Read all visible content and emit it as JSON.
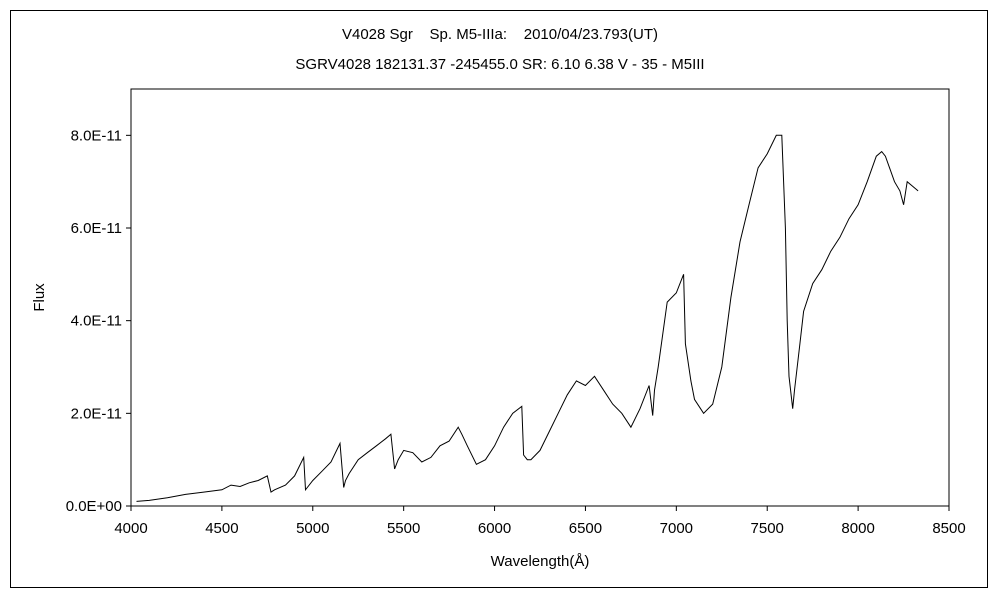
{
  "chart_data": {
    "type": "line",
    "title": "V4028 Sgr    Sp. M5-IIIa:    2010/04/23.793(UT)",
    "subtitle": "SGRV4028 182131.37 -245455.0 SR: 6.10 6.38 V - 35 - M5III",
    "xlabel": "Wavelength(Å)",
    "ylabel": "Flux",
    "xlim": [
      4000,
      8500
    ],
    "ylim": [
      0,
      9e-11
    ],
    "grid": false,
    "legend": "none",
    "x_ticks": [
      4000,
      4500,
      5000,
      5500,
      6000,
      6500,
      7000,
      7500,
      8000,
      8500
    ],
    "x_tick_labels": [
      "4000",
      "4500",
      "5000",
      "5500",
      "6000",
      "6500",
      "7000",
      "7500",
      "8000",
      "8500"
    ],
    "y_ticks": [
      0,
      2e-11,
      4e-11,
      6e-11,
      8e-11
    ],
    "y_tick_labels": [
      "0.0E+00",
      "2.0E-11",
      "4.0E-11",
      "6.0E-11",
      "8.0E-11"
    ],
    "line_color": "#000000",
    "series": [
      {
        "x": [
          4030,
          4100,
          4200,
          4300,
          4400,
          4500,
          4550,
          4600,
          4650,
          4700,
          4750,
          4770,
          4790,
          4850,
          4900,
          4950,
          4960,
          4970,
          5000,
          5050,
          5100,
          5150,
          5170,
          5180,
          5200,
          5250,
          5300,
          5350,
          5400,
          5430,
          5450,
          5470,
          5500,
          5550,
          5600,
          5650,
          5700,
          5750,
          5800,
          5820,
          5850,
          5900,
          5950,
          6000,
          6050,
          6100,
          6150,
          6160,
          6180,
          6200,
          6250,
          6300,
          6350,
          6400,
          6450,
          6500,
          6550,
          6600,
          6650,
          6700,
          6750,
          6800,
          6850,
          6870,
          6880,
          6900,
          6950,
          7000,
          7040,
          7050,
          7080,
          7100,
          7150,
          7200,
          7250,
          7300,
          7350,
          7400,
          7450,
          7500,
          7550,
          7580,
          7600,
          7610,
          7620,
          7640,
          7650,
          7680,
          7700,
          7750,
          7800,
          7850,
          7900,
          7950,
          8000,
          8050,
          8100,
          8130,
          8150,
          8200,
          8230,
          8250,
          8270,
          8300,
          8330
        ],
        "y": [
          1e-12,
          1.2e-12,
          1.8e-12,
          2.5e-12,
          3e-12,
          3.5e-12,
          4.5e-12,
          4.2e-12,
          5e-12,
          5.5e-12,
          6.5e-12,
          3e-12,
          3.5e-12,
          4.5e-12,
          6.5e-12,
          1.05e-11,
          3.5e-12,
          4e-12,
          5.5e-12,
          7.5e-12,
          9.5e-12,
          1.35e-11,
          4e-12,
          5.5e-12,
          7e-12,
          1e-11,
          1.15e-11,
          1.3e-11,
          1.45e-11,
          1.55e-11,
          8e-12,
          1e-11,
          1.2e-11,
          1.15e-11,
          9.5e-12,
          1.05e-11,
          1.3e-11,
          1.4e-11,
          1.7e-11,
          1.55e-11,
          1.3e-11,
          9e-12,
          1e-11,
          1.3e-11,
          1.7e-11,
          2e-11,
          2.15e-11,
          1.1e-11,
          1e-11,
          1e-11,
          1.2e-11,
          1.6e-11,
          2e-11,
          2.4e-11,
          2.7e-11,
          2.6e-11,
          2.8e-11,
          2.5e-11,
          2.2e-11,
          2e-11,
          1.7e-11,
          2.1e-11,
          2.6e-11,
          1.95e-11,
          2.5e-11,
          3e-11,
          4.4e-11,
          4.6e-11,
          5e-11,
          3.5e-11,
          2.7e-11,
          2.3e-11,
          2e-11,
          2.2e-11,
          3e-11,
          4.5e-11,
          5.7e-11,
          6.5e-11,
          7.3e-11,
          7.6e-11,
          8e-11,
          8e-11,
          6e-11,
          4e-11,
          2.8e-11,
          2.1e-11,
          2.5e-11,
          3.5e-11,
          4.2e-11,
          4.8e-11,
          5.1e-11,
          5.5e-11,
          5.8e-11,
          6.2e-11,
          6.5e-11,
          7e-11,
          7.55e-11,
          7.65e-11,
          7.55e-11,
          7e-11,
          6.8e-11,
          6.5e-11,
          7e-11,
          6.9e-11,
          6.8e-11
        ]
      }
    ]
  }
}
